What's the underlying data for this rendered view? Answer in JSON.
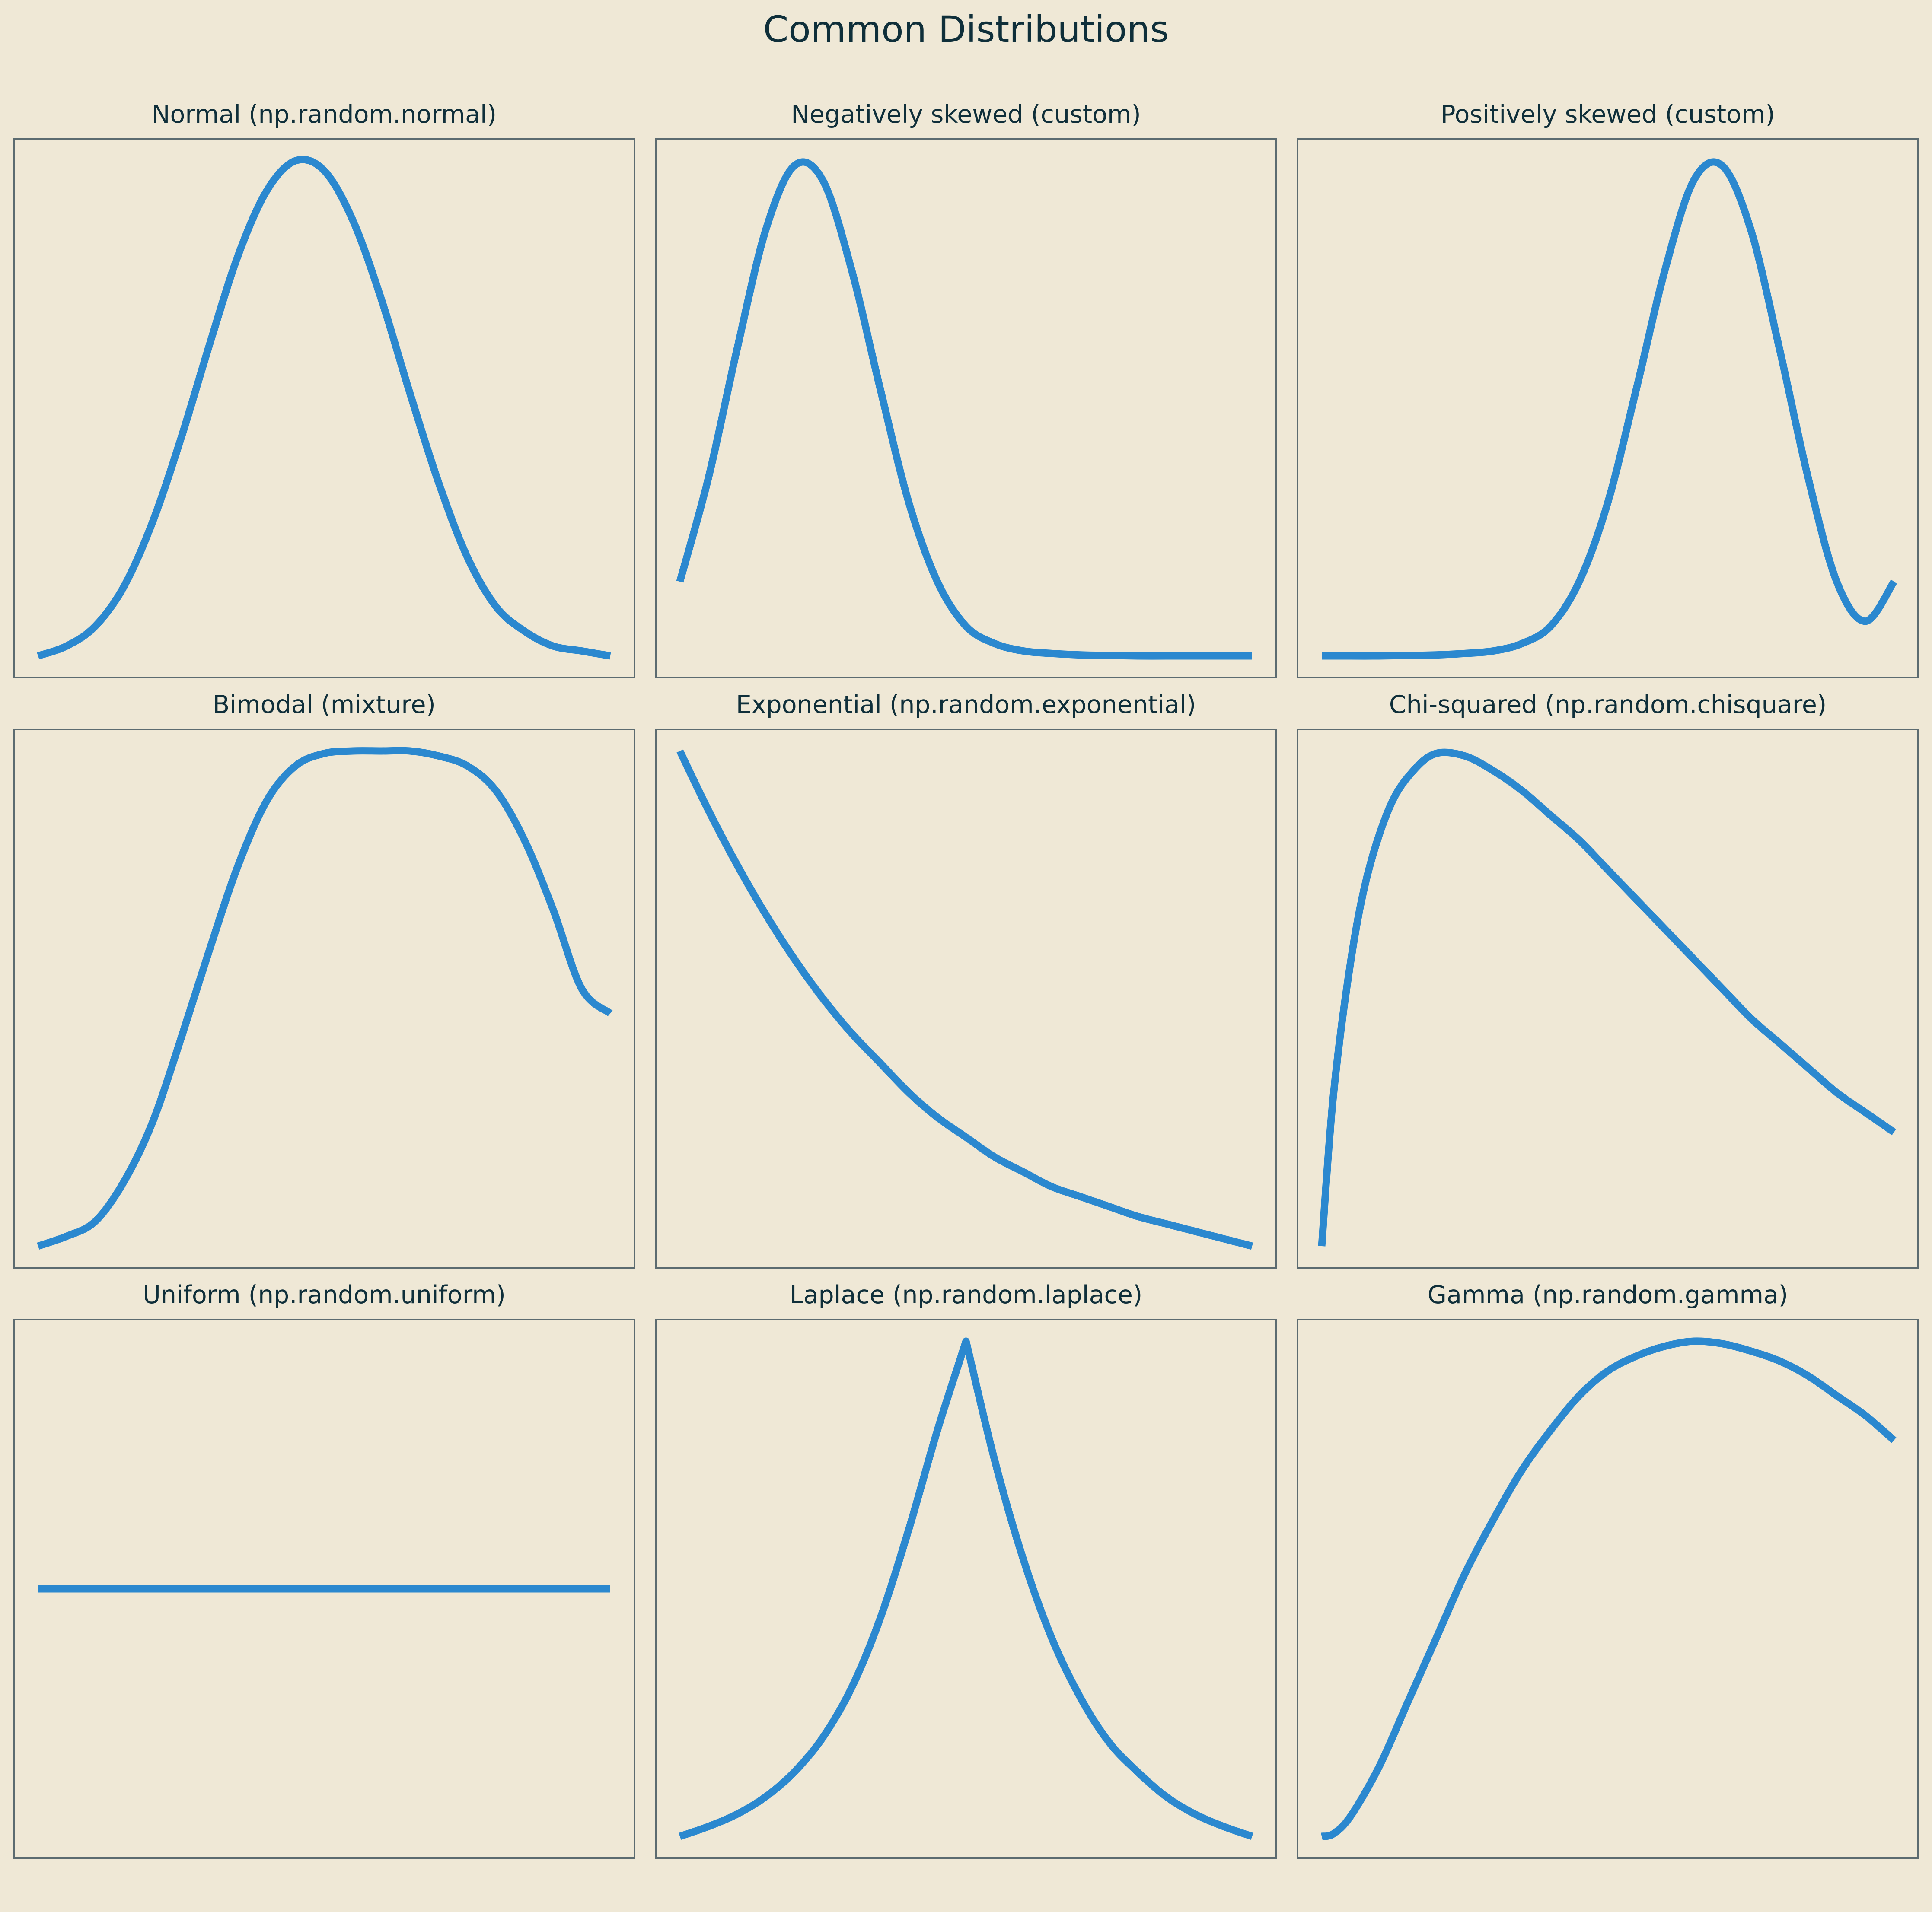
{
  "figure": {
    "title": "Common Distributions"
  },
  "style": {
    "line_color": "#2b88cf",
    "background": "#efe8d6",
    "frame_color": "#5c6b70"
  },
  "chart_data": [
    {
      "type": "line",
      "title": "Normal (np.random.normal)",
      "grid": false,
      "axes_visible": false,
      "x": [
        0,
        0.05,
        0.1,
        0.15,
        0.2,
        0.25,
        0.3,
        0.35,
        0.4,
        0.45,
        0.5,
        0.55,
        0.6,
        0.65,
        0.7,
        0.75,
        0.8,
        0.85,
        0.9,
        0.95,
        1
      ],
      "y": [
        0,
        0.02,
        0.06,
        0.14,
        0.27,
        0.44,
        0.63,
        0.81,
        0.94,
        1.0,
        0.98,
        0.88,
        0.72,
        0.53,
        0.35,
        0.2,
        0.1,
        0.05,
        0.02,
        0.01,
        0
      ]
    },
    {
      "type": "line",
      "title": "Negatively skewed (custom)",
      "grid": false,
      "axes_visible": false,
      "x": [
        0,
        0.05,
        0.1,
        0.15,
        0.2,
        0.25,
        0.3,
        0.35,
        0.4,
        0.45,
        0.5,
        0.55,
        0.6,
        0.65,
        0.7,
        0.75,
        0.8,
        0.85,
        0.9,
        0.95,
        1
      ],
      "y": [
        0.15,
        0.36,
        0.62,
        0.86,
        0.99,
        0.96,
        0.78,
        0.54,
        0.31,
        0.15,
        0.06,
        0.025,
        0.01,
        0.005,
        0.002,
        0.001,
        0,
        0,
        0,
        0,
        0
      ]
    },
    {
      "type": "line",
      "title": "Positively skewed (custom)",
      "grid": false,
      "axes_visible": false,
      "x": [
        0,
        0.05,
        0.1,
        0.15,
        0.2,
        0.25,
        0.3,
        0.35,
        0.4,
        0.45,
        0.5,
        0.55,
        0.6,
        0.65,
        0.7,
        0.75,
        0.8,
        0.85,
        0.9,
        0.95,
        1
      ],
      "y": [
        0,
        0,
        0,
        0.001,
        0.002,
        0.005,
        0.01,
        0.025,
        0.06,
        0.15,
        0.31,
        0.54,
        0.78,
        0.96,
        0.99,
        0.86,
        0.62,
        0.36,
        0.15,
        0.07,
        0.15
      ]
    },
    {
      "type": "line",
      "title": "Bimodal (mixture)",
      "grid": false,
      "axes_visible": false,
      "x": [
        0,
        0.05,
        0.1,
        0.15,
        0.2,
        0.25,
        0.3,
        0.35,
        0.4,
        0.45,
        0.5,
        0.55,
        0.6,
        0.65,
        0.7,
        0.75,
        0.8,
        0.85,
        0.9,
        0.95,
        1
      ],
      "y": [
        0,
        0.02,
        0.05,
        0.13,
        0.25,
        0.42,
        0.6,
        0.77,
        0.9,
        0.97,
        0.995,
        1.0,
        1.0,
        1.0,
        0.99,
        0.97,
        0.92,
        0.82,
        0.68,
        0.52,
        0.47
      ]
    },
    {
      "type": "line",
      "title": "Exponential (np.random.exponential)",
      "grid": false,
      "axes_visible": false,
      "x": [
        0,
        0.05,
        0.1,
        0.15,
        0.2,
        0.25,
        0.3,
        0.35,
        0.4,
        0.45,
        0.5,
        0.55,
        0.6,
        0.65,
        0.7,
        0.75,
        0.8,
        0.85,
        0.9,
        0.95,
        1
      ],
      "y": [
        1.0,
        0.88,
        0.77,
        0.67,
        0.58,
        0.5,
        0.43,
        0.37,
        0.31,
        0.26,
        0.22,
        0.18,
        0.15,
        0.12,
        0.1,
        0.08,
        0.06,
        0.045,
        0.03,
        0.015,
        0
      ]
    },
    {
      "type": "line",
      "title": "Chi-squared (np.random.chisquare)",
      "grid": false,
      "axes_visible": false,
      "x": [
        0,
        0.02,
        0.05,
        0.08,
        0.12,
        0.16,
        0.2,
        0.25,
        0.3,
        0.35,
        0.4,
        0.45,
        0.5,
        0.55,
        0.6,
        0.65,
        0.7,
        0.75,
        0.8,
        0.85,
        0.9,
        0.95,
        1
      ],
      "y": [
        0,
        0.3,
        0.57,
        0.75,
        0.89,
        0.96,
        0.995,
        0.99,
        0.96,
        0.92,
        0.87,
        0.82,
        0.76,
        0.7,
        0.64,
        0.58,
        0.52,
        0.46,
        0.41,
        0.36,
        0.31,
        0.27,
        0.23
      ]
    },
    {
      "type": "line",
      "title": "Uniform (np.random.uniform)",
      "grid": false,
      "axes_visible": false,
      "x": [
        0,
        1
      ],
      "y": [
        0.5,
        0.5
      ],
      "ylim": [
        0,
        1
      ]
    },
    {
      "type": "line",
      "title": "Laplace (np.random.laplace)",
      "grid": false,
      "axes_visible": false,
      "x": [
        0,
        0.05,
        0.1,
        0.15,
        0.2,
        0.25,
        0.3,
        0.35,
        0.4,
        0.45,
        0.5,
        0.55,
        0.6,
        0.65,
        0.7,
        0.75,
        0.8,
        0.85,
        0.9,
        0.95,
        1
      ],
      "y": [
        0,
        0.02,
        0.045,
        0.08,
        0.13,
        0.2,
        0.3,
        0.44,
        0.62,
        0.82,
        1.0,
        0.76,
        0.56,
        0.4,
        0.28,
        0.19,
        0.13,
        0.08,
        0.045,
        0.02,
        0
      ]
    },
    {
      "type": "line",
      "title": "Gamma (np.random.gamma)",
      "grid": false,
      "axes_visible": false,
      "x": [
        0,
        0.02,
        0.05,
        0.1,
        0.15,
        0.2,
        0.25,
        0.3,
        0.35,
        0.4,
        0.45,
        0.5,
        0.55,
        0.6,
        0.65,
        0.7,
        0.75,
        0.8,
        0.85,
        0.9,
        0.95,
        1
      ],
      "y": [
        0,
        0.005,
        0.04,
        0.14,
        0.27,
        0.4,
        0.53,
        0.64,
        0.74,
        0.82,
        0.89,
        0.94,
        0.97,
        0.99,
        1.0,
        0.995,
        0.98,
        0.96,
        0.93,
        0.89,
        0.85,
        0.8
      ]
    }
  ]
}
